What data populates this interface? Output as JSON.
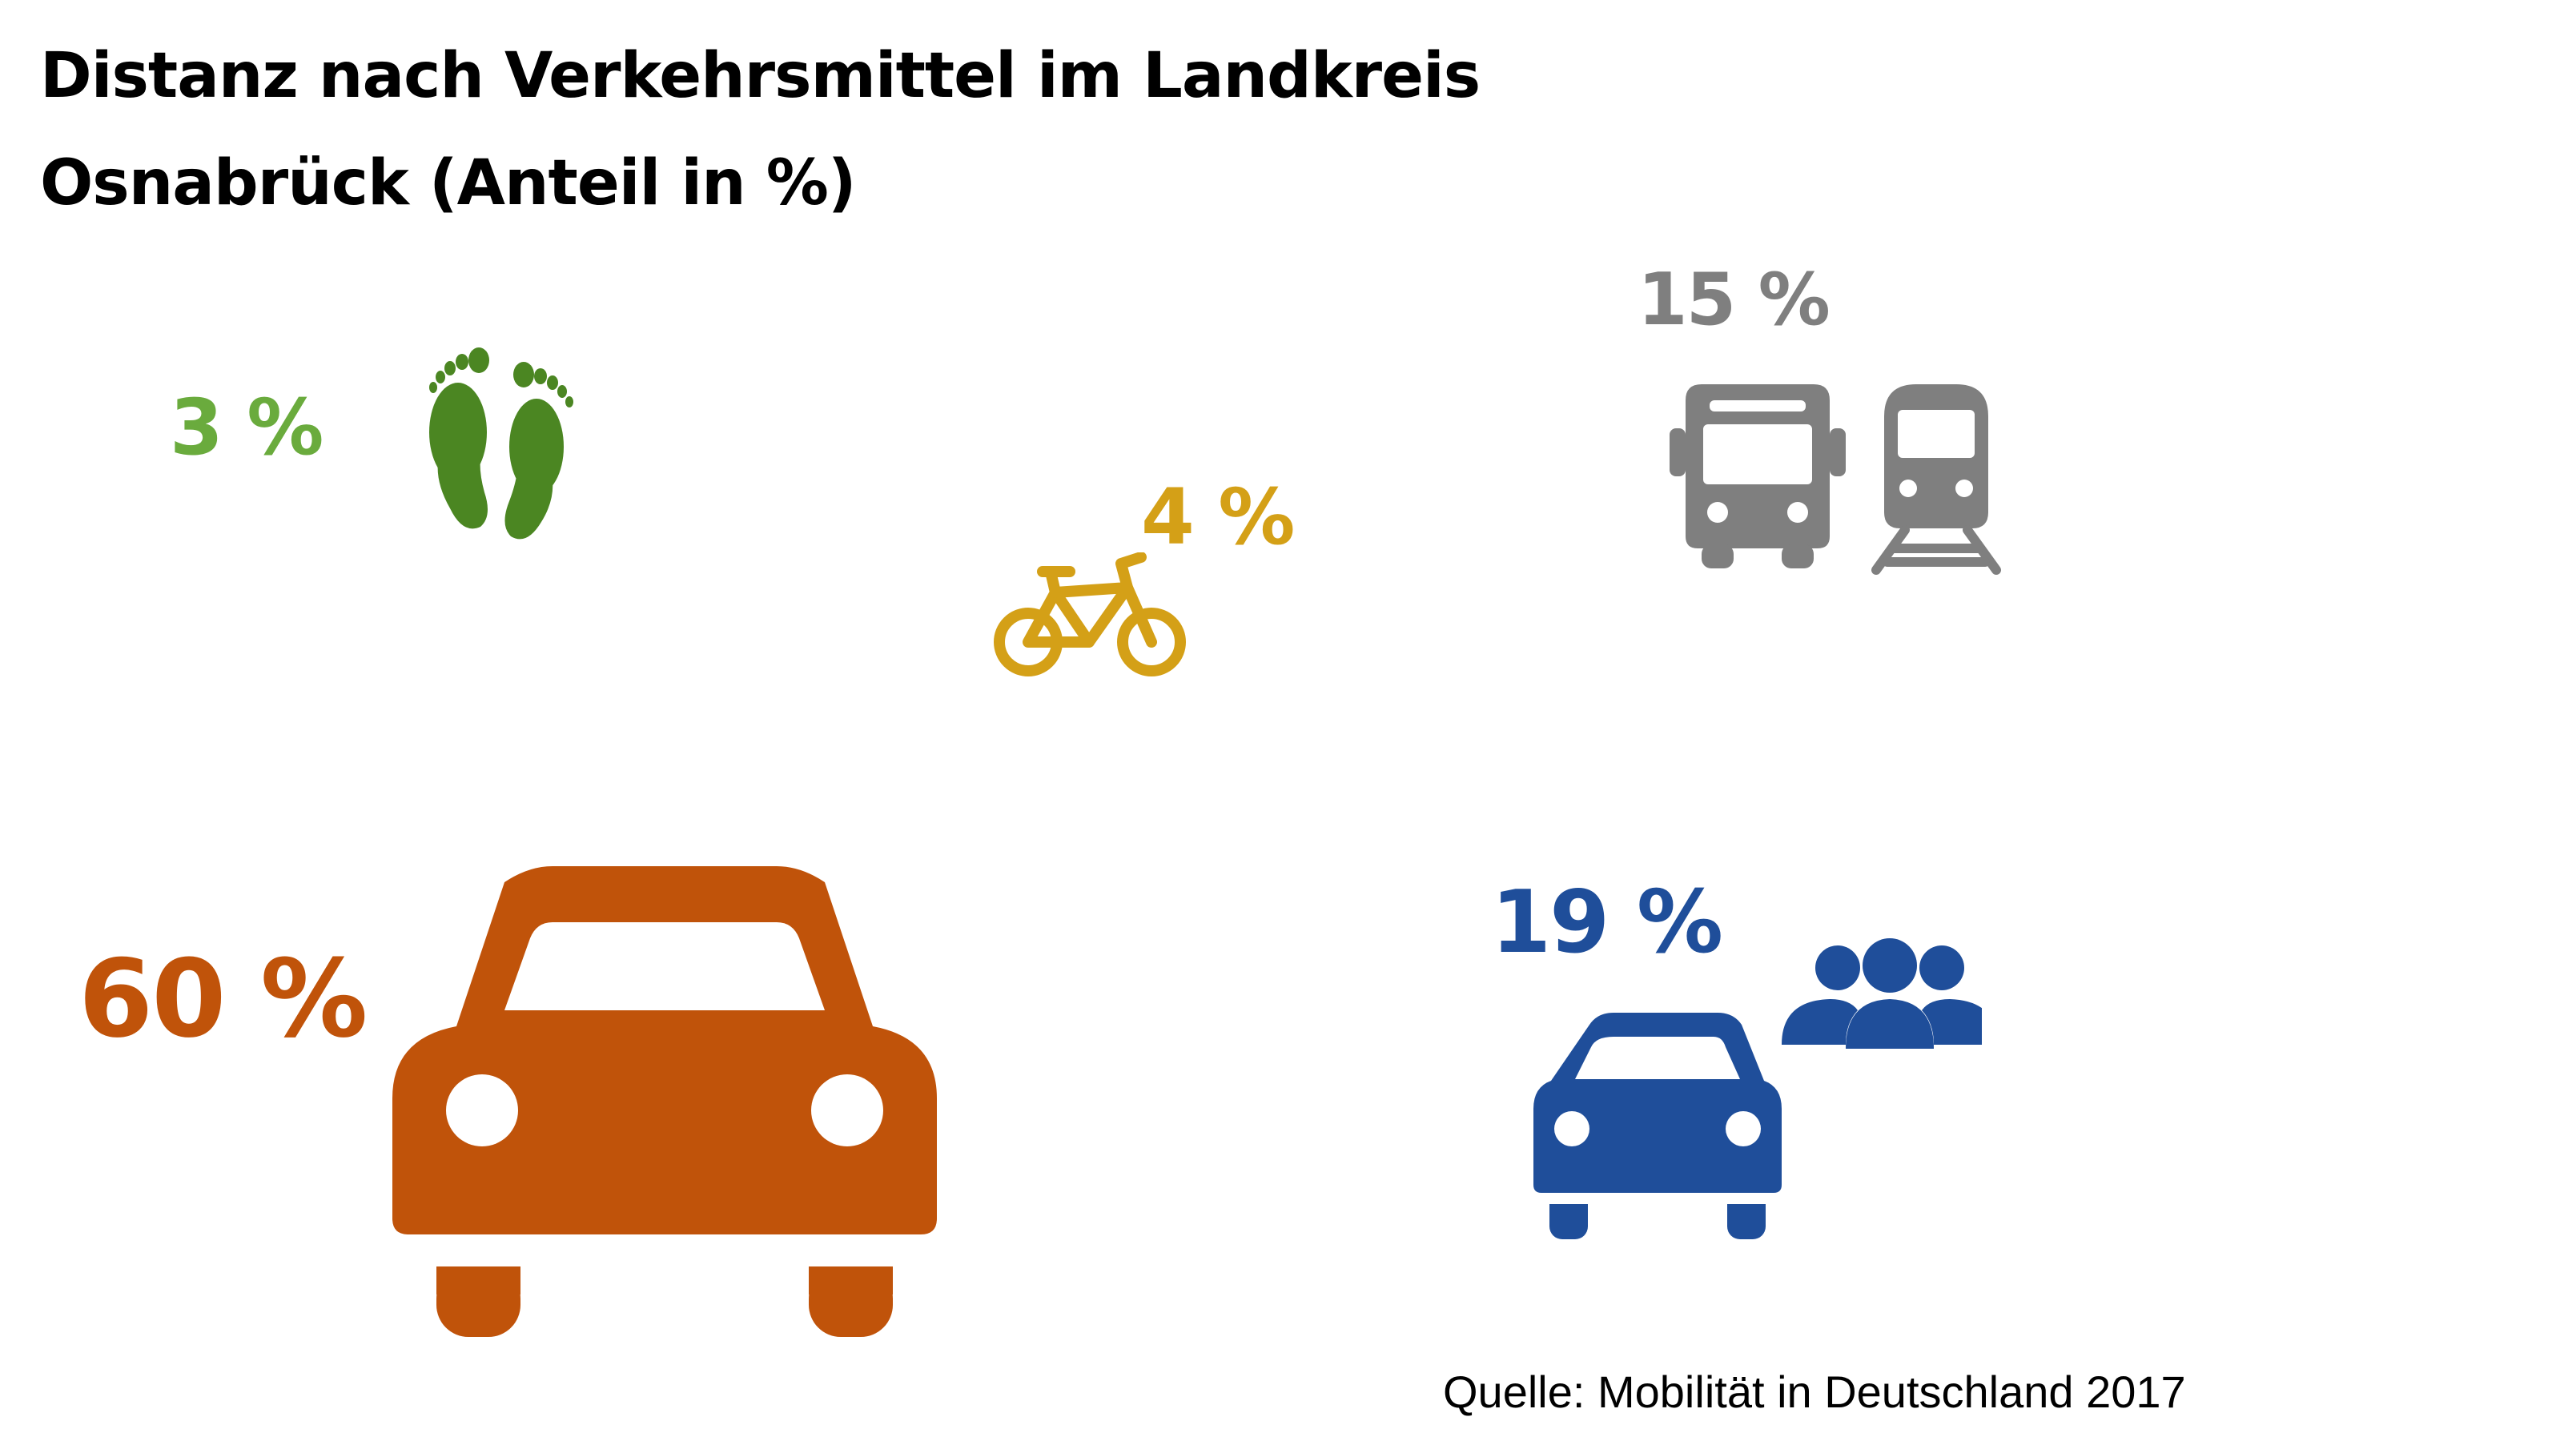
{
  "title": {
    "line1": "Distanz nach Verkehrsmittel im Landkreis",
    "line2": "Osnabrück (Anteil in %)"
  },
  "source": "Quelle: Mobilität in Deutschland 2017",
  "chart_data": {
    "type": "infographic",
    "title": "Distanz nach Verkehrsmittel im Landkreis Osnabrück (Anteil in %)",
    "unit": "%",
    "categories": [
      {
        "key": "walk",
        "value": 3,
        "label": "3 %",
        "icon": "footprints-icon",
        "color": "#6aab3d",
        "icon_color": "#4b8622"
      },
      {
        "key": "bike",
        "value": 4,
        "label": "4 %",
        "icon": "bicycle-icon",
        "color": "#d4a017"
      },
      {
        "key": "public_transport",
        "value": 15,
        "label": "15 %",
        "icon": "bus-and-train-icon",
        "color": "#7f7f7f"
      },
      {
        "key": "car_driver",
        "value": 60,
        "label": "60 %",
        "icon": "car-icon",
        "color": "#c0530a"
      },
      {
        "key": "car_passenger",
        "value": 19,
        "label": "19 %",
        "icon": "car-with-people-icon",
        "color": "#1f4e9a"
      }
    ]
  }
}
